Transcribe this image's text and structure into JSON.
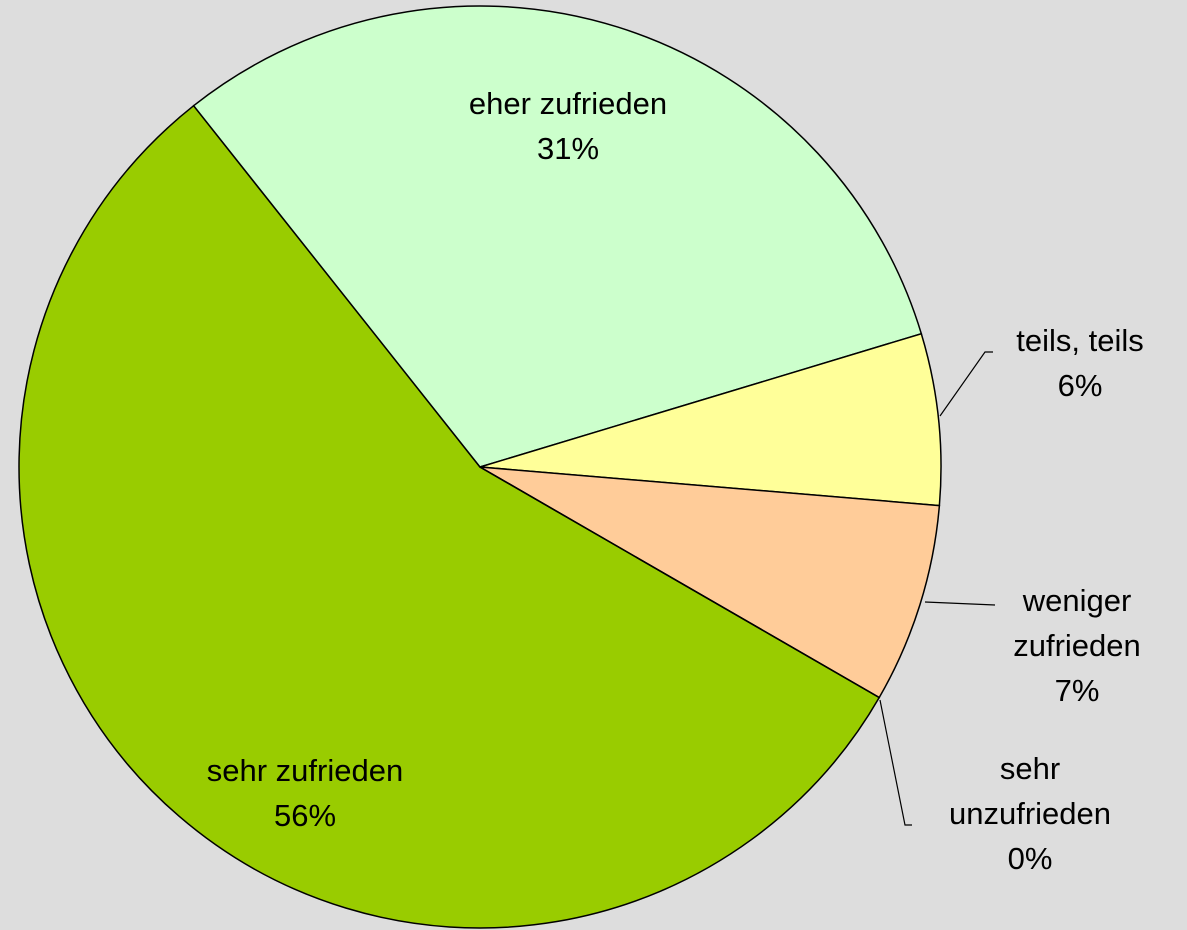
{
  "chart_data": {
    "type": "pie",
    "categories": [
      "sehr zufrieden",
      "eher zufrieden",
      "teils, teils",
      "weniger zufrieden",
      "sehr unzufrieden"
    ],
    "values": [
      56,
      31,
      6,
      7,
      0
    ],
    "value_labels": [
      "56%",
      "31%",
      "6%",
      "7%",
      "0%"
    ],
    "colors": [
      "#99cc00",
      "#ccffcc",
      "#ffff99",
      "#ffcc99",
      "#ff8080"
    ]
  }
}
